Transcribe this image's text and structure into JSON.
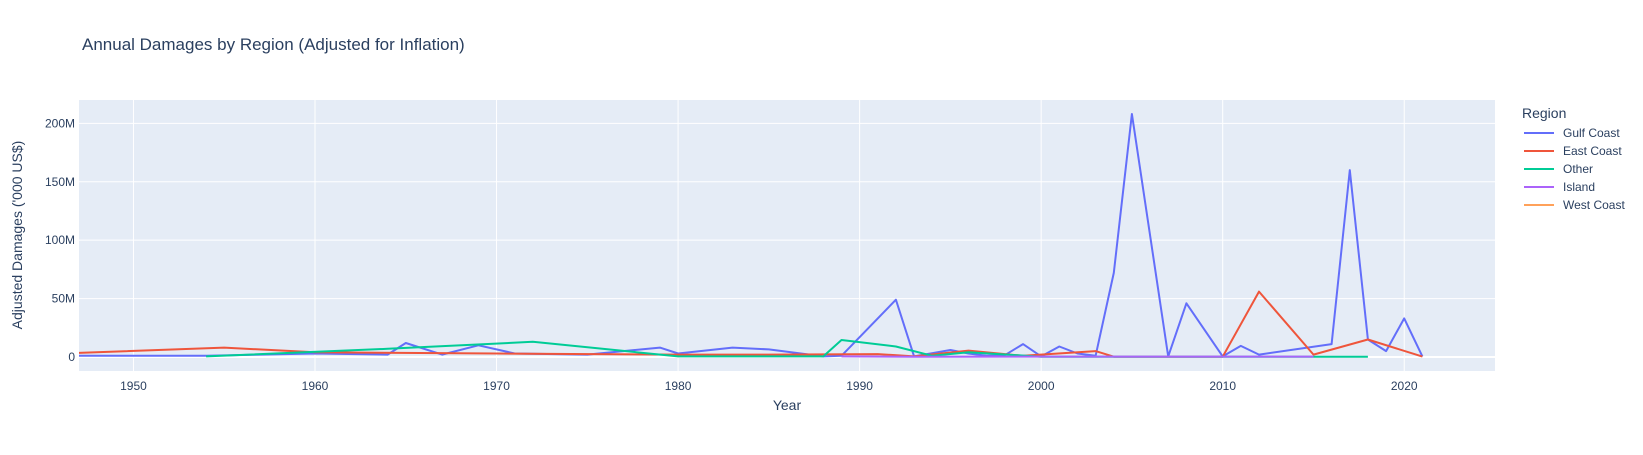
{
  "chart_data": {
    "type": "line",
    "title": "Annual Damages by Region (Adjusted for Inflation)",
    "xlabel": "Year",
    "ylabel": "Adjusted Damages ('000 US$)",
    "xlim": [
      1947,
      2025
    ],
    "ylim": [
      -12000000,
      220000000
    ],
    "x_ticks": [
      1950,
      1960,
      1970,
      1980,
      1990,
      2000,
      2010,
      2020
    ],
    "y_ticks": [
      0,
      50000000,
      100000000,
      150000000,
      200000000
    ],
    "y_tick_labels": [
      "0",
      "50M",
      "100M",
      "150M",
      "200M"
    ],
    "grid": true,
    "legend": {
      "title": "Region",
      "placement": "right"
    },
    "series": [
      {
        "name": "Gulf Coast",
        "color": "#636efa",
        "points": [
          [
            1947,
            1000000
          ],
          [
            1954,
            1000000
          ],
          [
            1960,
            3000000
          ],
          [
            1964,
            2000000
          ],
          [
            1965,
            12000000
          ],
          [
            1967,
            2000000
          ],
          [
            1969,
            10000000
          ],
          [
            1971,
            3000000
          ],
          [
            1975,
            2000000
          ],
          [
            1979,
            8000000
          ],
          [
            1980,
            3000000
          ],
          [
            1983,
            8000000
          ],
          [
            1985,
            6500000
          ],
          [
            1988,
            500000
          ],
          [
            1989,
            1000000
          ],
          [
            1992,
            49000000
          ],
          [
            1993,
            500000
          ],
          [
            1995,
            6000000
          ],
          [
            1996,
            3000000
          ],
          [
            1997,
            1000000
          ],
          [
            1998,
            1500000
          ],
          [
            1999,
            11000000
          ],
          [
            2000,
            500000
          ],
          [
            2001,
            9000000
          ],
          [
            2002,
            3000000
          ],
          [
            2003,
            1000000
          ],
          [
            2004,
            72000000
          ],
          [
            2005,
            208000000
          ],
          [
            2007,
            500000
          ],
          [
            2008,
            46000000
          ],
          [
            2010,
            500000
          ],
          [
            2011,
            9500000
          ],
          [
            2012,
            2000000
          ],
          [
            2016,
            11000000
          ],
          [
            2017,
            160000000
          ],
          [
            2018,
            15000000
          ],
          [
            2019,
            5000000
          ],
          [
            2020,
            33000000
          ],
          [
            2021,
            500000
          ]
        ]
      },
      {
        "name": "East Coast",
        "color": "#EF553B",
        "points": [
          [
            1947,
            3500000
          ],
          [
            1955,
            8000000
          ],
          [
            1960,
            4000000
          ],
          [
            1970,
            3000000
          ],
          [
            1980,
            2000000
          ],
          [
            1985,
            2000000
          ],
          [
            1991,
            2500000
          ],
          [
            1993,
            500000
          ],
          [
            1996,
            5500000
          ],
          [
            1999,
            1000000
          ],
          [
            2003,
            5000000
          ],
          [
            2004,
            200000
          ],
          [
            2010,
            200000
          ],
          [
            2012,
            56000000
          ],
          [
            2015,
            2000000
          ],
          [
            2018,
            15000000
          ],
          [
            2021,
            300000
          ]
        ]
      },
      {
        "name": "Other",
        "color": "#00cc96",
        "points": [
          [
            1954,
            500000
          ],
          [
            1964,
            7000000
          ],
          [
            1972,
            13000000
          ],
          [
            1980,
            500000
          ],
          [
            1988,
            500000
          ],
          [
            1989,
            14500000
          ],
          [
            1992,
            9000000
          ],
          [
            1994,
            1000000
          ],
          [
            1996,
            4000000
          ],
          [
            2000,
            200000
          ],
          [
            2004,
            200000
          ],
          [
            2010,
            200000
          ],
          [
            2018,
            200000
          ]
        ]
      },
      {
        "name": "Island",
        "color": "#ab63fa",
        "points": [
          [
            1989,
            500000
          ],
          [
            1993,
            200000
          ],
          [
            2004,
            300000
          ],
          [
            2015,
            300000
          ]
        ]
      },
      {
        "name": "West Coast",
        "color": "#FFA15A",
        "points": []
      }
    ]
  }
}
